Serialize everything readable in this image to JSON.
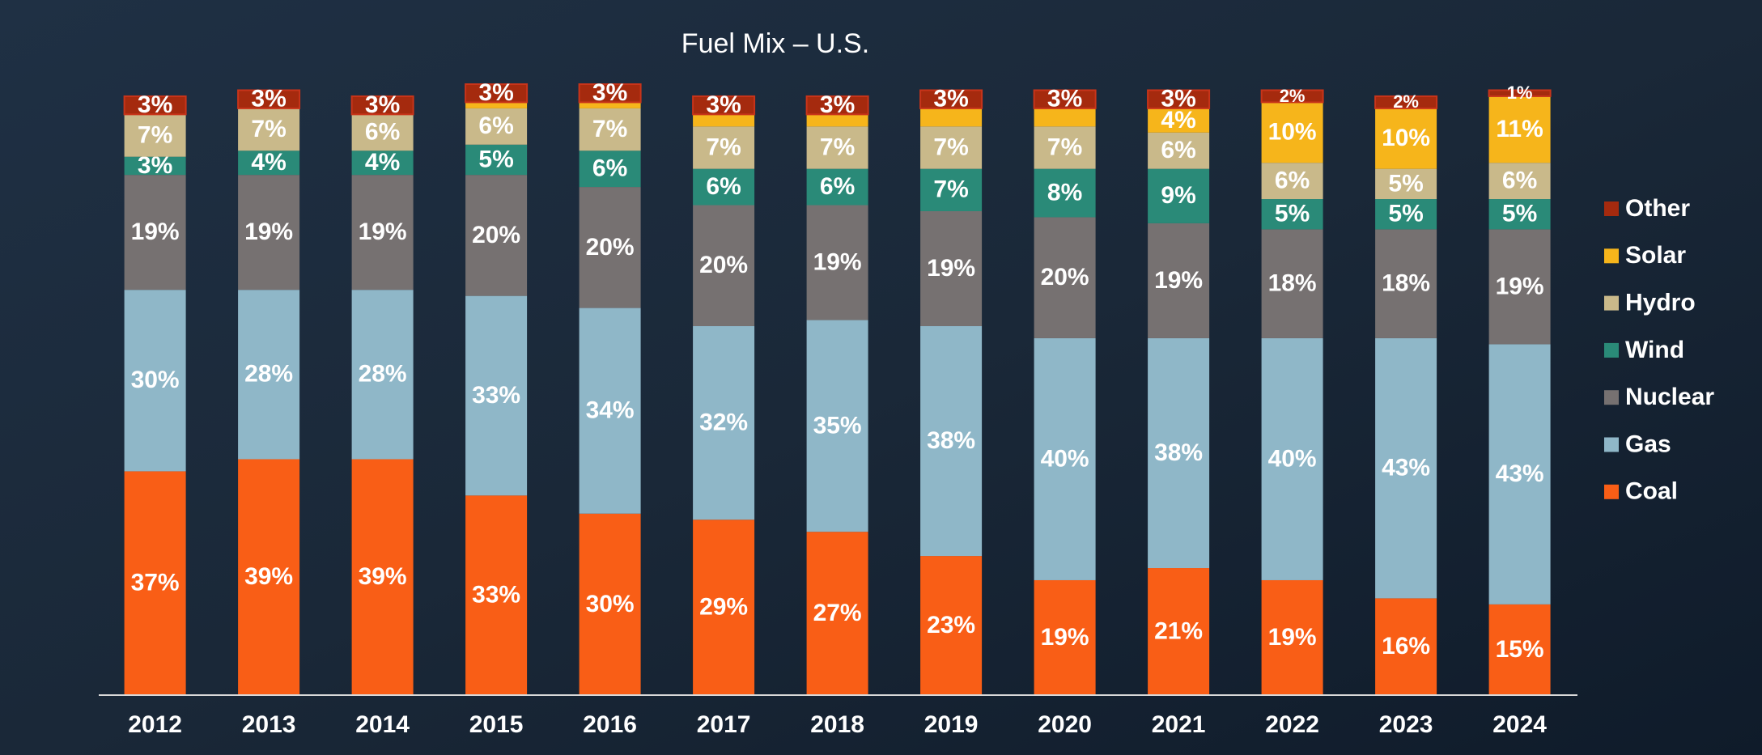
{
  "chart_data": {
    "type": "stacked-bar",
    "title": "Fuel Mix – U.S.",
    "categories": [
      "2012",
      "2013",
      "2014",
      "2015",
      "2016",
      "2017",
      "2018",
      "2019",
      "2020",
      "2021",
      "2022",
      "2023",
      "2024"
    ],
    "series": [
      {
        "name": "Coal",
        "color": "#f95e16",
        "values": [
          37,
          39,
          39,
          33,
          30,
          29,
          27,
          23,
          19,
          21,
          19,
          16,
          15
        ],
        "value_labels": [
          "37%",
          "39%",
          "39%",
          "33%",
          "30%",
          "29%",
          "27%",
          "23%",
          "19%",
          "21%",
          "19%",
          "16%",
          "15%"
        ]
      },
      {
        "name": "Gas",
        "color": "#8fb7c8",
        "values": [
          30,
          28,
          28,
          33,
          34,
          32,
          35,
          38,
          40,
          38,
          40,
          43,
          43
        ],
        "value_labels": [
          "30%",
          "28%",
          "28%",
          "33%",
          "34%",
          "32%",
          "35%",
          "38%",
          "40%",
          "38%",
          "40%",
          "43%",
          "43%"
        ]
      },
      {
        "name": "Nuclear",
        "color": "#767171",
        "values": [
          19,
          19,
          19,
          20,
          20,
          20,
          19,
          19,
          20,
          19,
          18,
          18,
          19
        ],
        "value_labels": [
          "19%",
          "19%",
          "19%",
          "20%",
          "20%",
          "20%",
          "19%",
          "19%",
          "20%",
          "19%",
          "18%",
          "18%",
          "19%"
        ]
      },
      {
        "name": "Wind",
        "color": "#2a8a78",
        "values": [
          3,
          4,
          4,
          5,
          6,
          6,
          6,
          7,
          8,
          9,
          5,
          5,
          5
        ],
        "value_labels": [
          "3%",
          "4%",
          "4%",
          "5%",
          "6%",
          "6%",
          "6%",
          "7%",
          "8%",
          "9%",
          "5%",
          "5%",
          "5%"
        ]
      },
      {
        "name": "Hydro",
        "color": "#c9b98a",
        "values": [
          7,
          7,
          6,
          6,
          7,
          7,
          7,
          7,
          7,
          6,
          6,
          5,
          6
        ],
        "value_labels": [
          "7%",
          "7%",
          "6%",
          "6%",
          "7%",
          "7%",
          "7%",
          "7%",
          "7%",
          "6%",
          "6%",
          "5%",
          "6%"
        ]
      },
      {
        "name": "Solar",
        "color": "#f6b51b",
        "values": [
          0,
          0,
          0,
          1,
          1,
          2,
          2,
          3,
          3,
          4,
          10,
          10,
          11
        ],
        "value_labels": [
          null,
          null,
          null,
          null,
          null,
          null,
          null,
          null,
          null,
          "4%",
          "10%",
          "10%",
          "11%"
        ]
      },
      {
        "name": "Other",
        "color": "#a52a0e",
        "values": [
          3,
          3,
          3,
          3,
          3,
          3,
          3,
          3,
          3,
          3,
          2,
          2,
          1
        ],
        "value_labels": [
          "3%",
          "3%",
          "3%",
          "3%",
          "3%",
          "3%",
          "3%",
          "3%",
          "3%",
          "3%",
          "2%",
          "2%",
          "1%"
        ]
      }
    ]
  }
}
